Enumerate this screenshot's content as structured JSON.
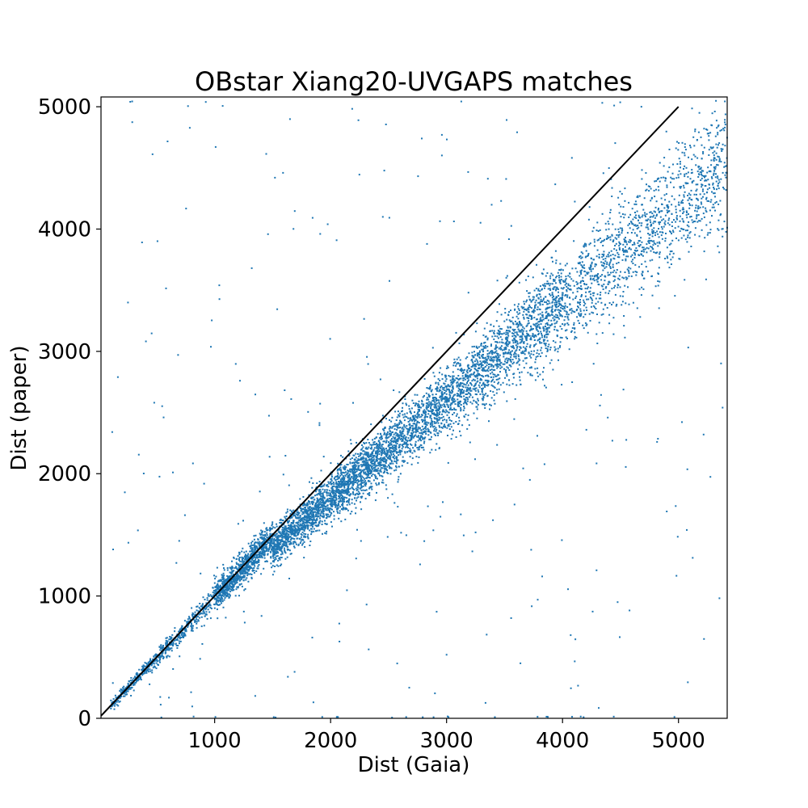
{
  "chart_data": {
    "type": "scatter",
    "title": "OBstar Xiang20-UVGAPS matches",
    "xlabel": "Dist (Gaia)",
    "ylabel": "Dist (paper)",
    "xlim": [
      20,
      5420
    ],
    "ylim": [
      0,
      5080
    ],
    "xticks": [
      1000,
      2000,
      3000,
      4000,
      5000
    ],
    "yticks": [
      0,
      1000,
      2000,
      3000,
      4000,
      5000
    ],
    "grid": false,
    "marker_color": "#1f77b4",
    "line_color": "#000000",
    "reference_line": {
      "x": [
        20,
        5000
      ],
      "y": [
        20,
        5000
      ]
    },
    "series": [
      {
        "trend": "y ≈ x up to ~1500, then y ≈ 0.8·x + 200 at larger distances; main locus ≈ 7000 points with scatter growing with distance",
        "points_sample": [
          [
            500,
            520
          ],
          [
            700,
            720
          ],
          [
            900,
            900
          ],
          [
            1000,
            980
          ],
          [
            1200,
            1180
          ],
          [
            1400,
            1350
          ],
          [
            1600,
            1550
          ],
          [
            1800,
            1760
          ],
          [
            2000,
            1930
          ],
          [
            2200,
            2050
          ],
          [
            2400,
            2240
          ],
          [
            2600,
            2350
          ],
          [
            2800,
            2500
          ],
          [
            3000,
            2650
          ],
          [
            3200,
            2800
          ],
          [
            3400,
            2950
          ],
          [
            3600,
            3050
          ],
          [
            3800,
            3200
          ],
          [
            4000,
            3350
          ],
          [
            4200,
            3450
          ],
          [
            4500,
            3650
          ],
          [
            4800,
            3950
          ],
          [
            5100,
            4100
          ],
          [
            5300,
            4200
          ]
        ],
        "outliers_sample": [
          [
            1590,
            4460
          ],
          [
            1520,
            4420
          ],
          [
            2240,
            4890
          ],
          [
            1040,
            3540
          ],
          [
            560,
            2460
          ],
          [
            640,
            2010
          ],
          [
            1910,
            3960
          ],
          [
            2960,
            4770
          ],
          [
            3400,
            1620
          ],
          [
            3250,
            1520
          ],
          [
            4430,
            2270
          ],
          [
            3000,
            520
          ],
          [
            4070,
            680
          ],
          [
            2310,
            930
          ],
          [
            1660,
            2610
          ],
          [
            1320,
            3680
          ],
          [
            2450,
            4100
          ],
          [
            4680,
            5000
          ],
          [
            5180,
            4950
          ],
          [
            5380,
            2540
          ]
        ]
      }
    ]
  }
}
